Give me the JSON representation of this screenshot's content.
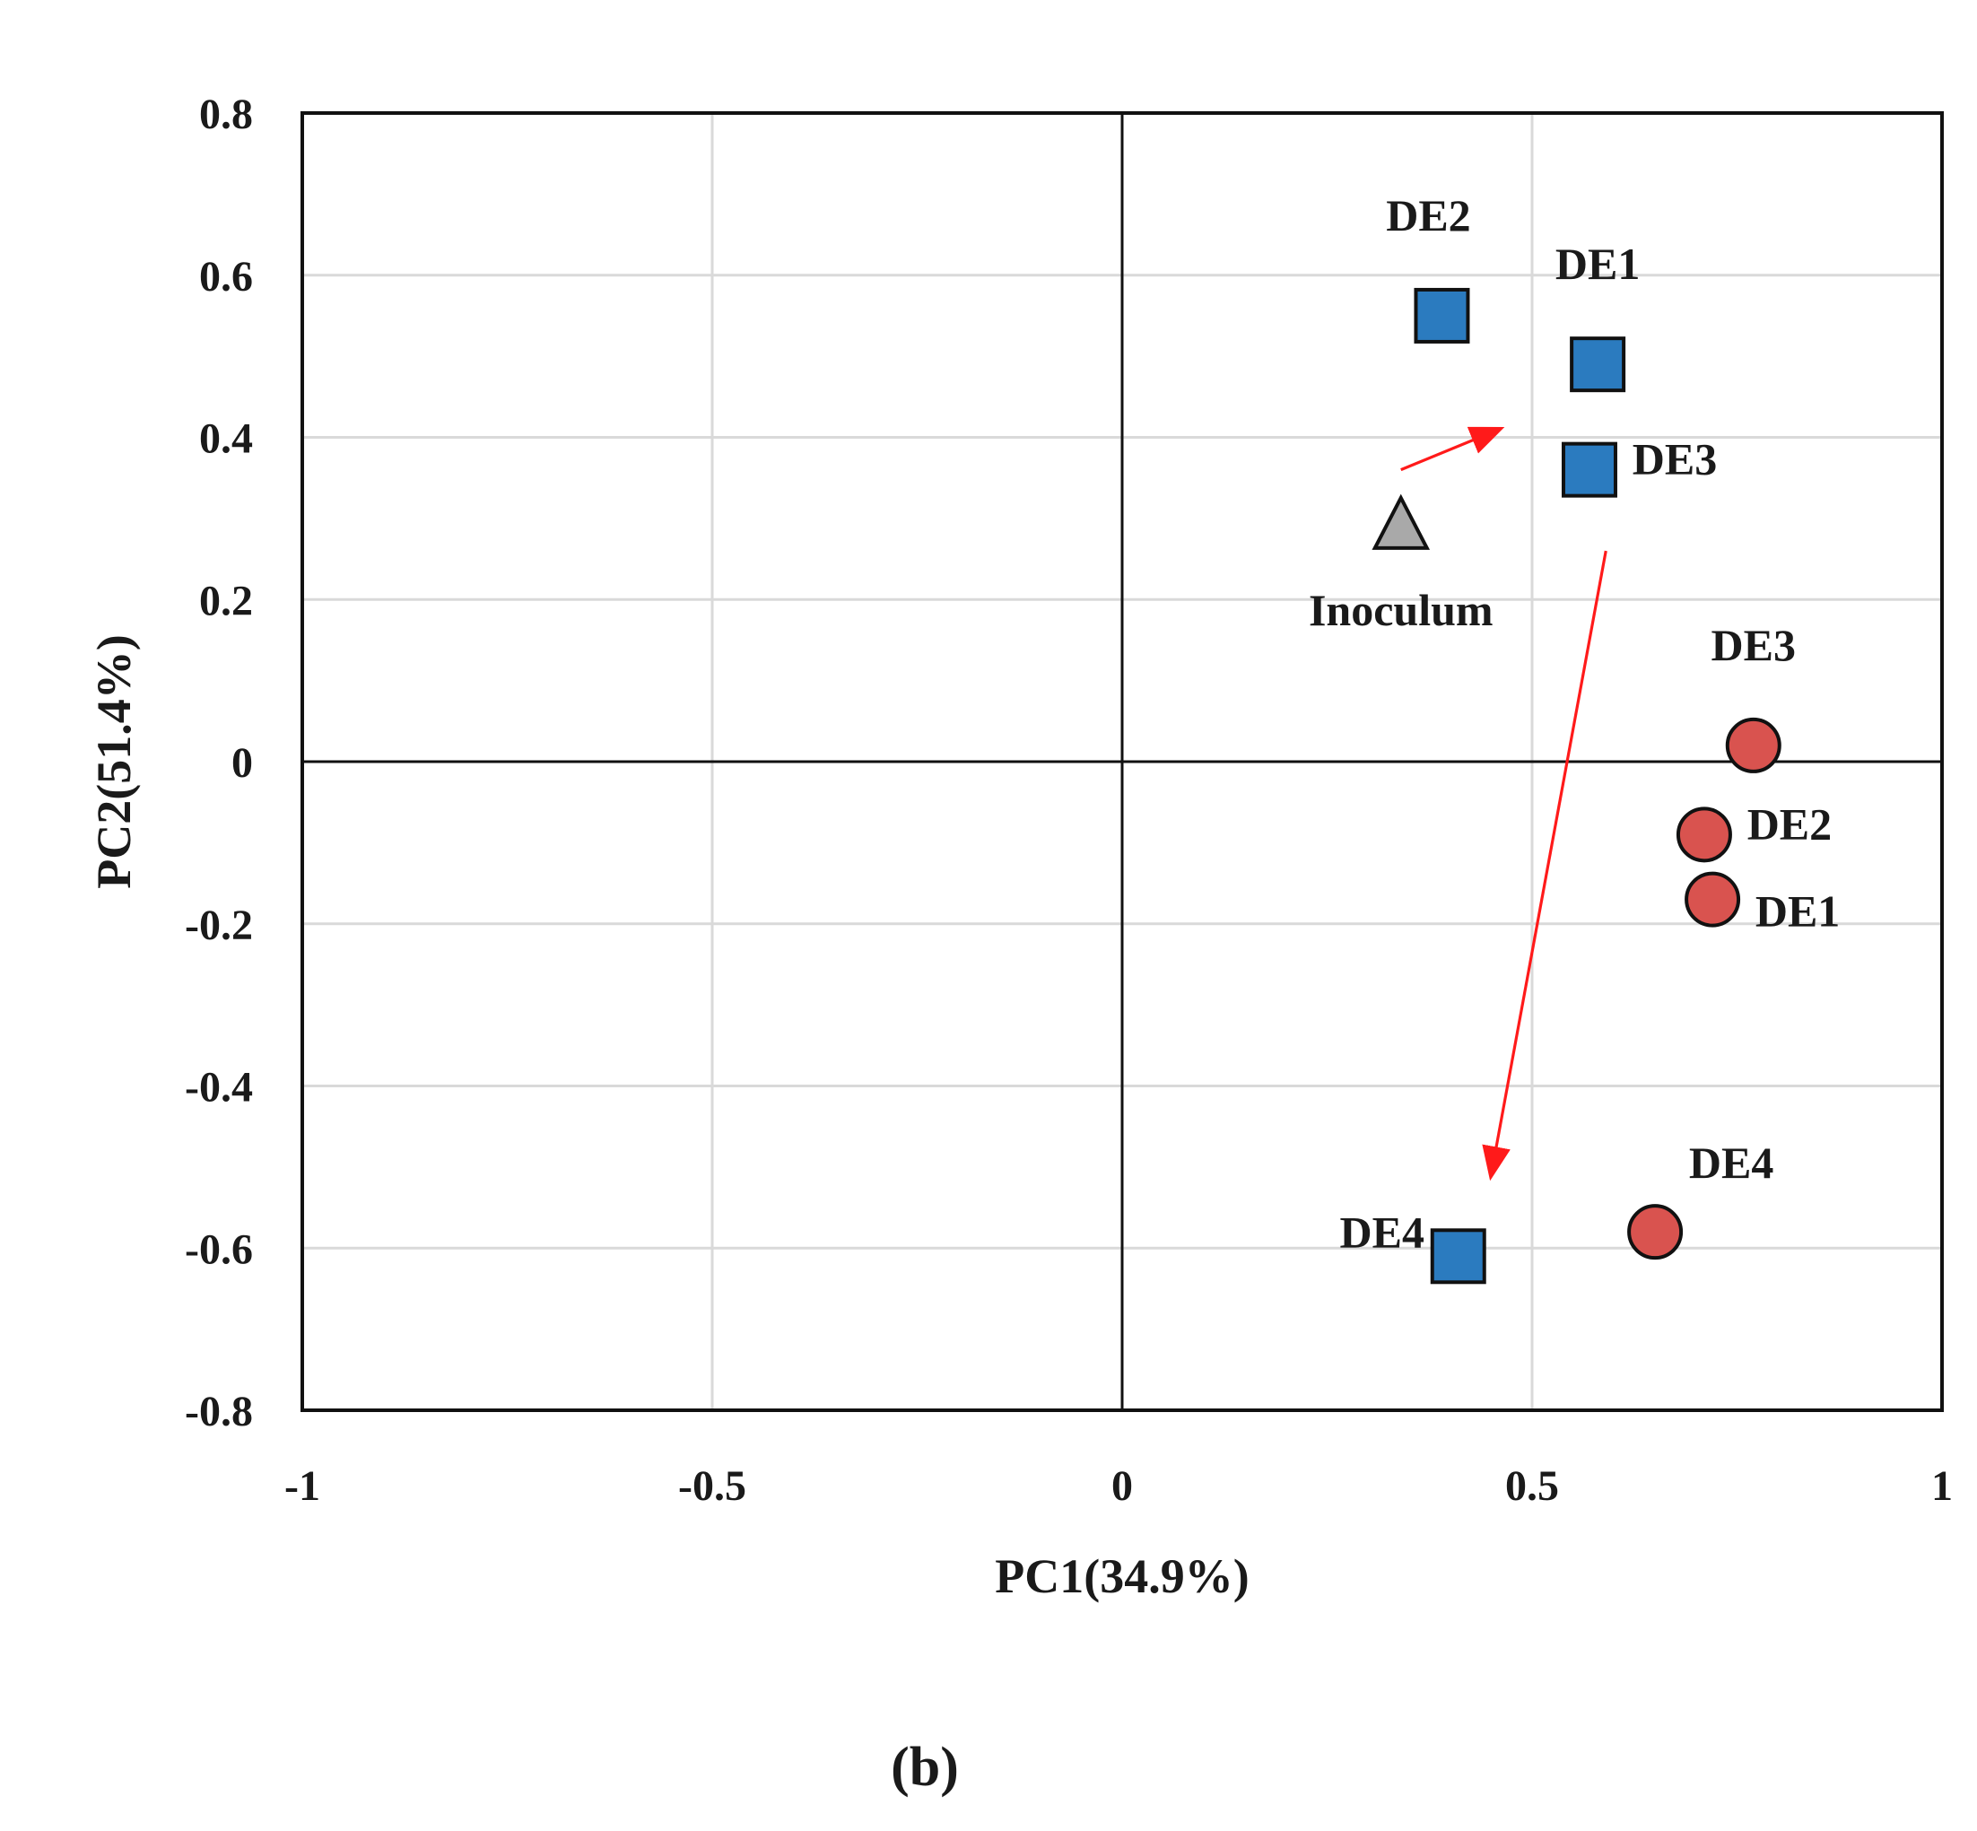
{
  "chart_data": {
    "type": "scatter",
    "title": "",
    "xlabel": "PC1(34.9%)",
    "ylabel": "PC2(51.4%)",
    "xlim": [
      -1,
      1
    ],
    "ylim": [
      -0.8,
      0.8
    ],
    "xticks": [
      -1,
      -0.5,
      0,
      0.5,
      1
    ],
    "xtick_labels": [
      "-1",
      "-0.5",
      "0",
      "0.5",
      "1"
    ],
    "yticks": [
      -0.8,
      -0.6,
      -0.4,
      -0.2,
      0,
      0.2,
      0.4,
      0.6,
      0.8
    ],
    "ytick_labels": [
      "-0.8",
      "-0.6",
      "-0.4",
      "-0.2",
      "0",
      "0.2",
      "0.4",
      "0.6",
      "0.8"
    ],
    "grid": true,
    "panel_label": "(b)",
    "series": [
      {
        "name": "squares",
        "marker": "square",
        "color": "#2b7bbf",
        "points": [
          {
            "label": "DE1",
            "x": 0.58,
            "y": 0.49,
            "label_pos": "above"
          },
          {
            "label": "DE2",
            "x": 0.39,
            "y": 0.55,
            "label_pos": "above-left"
          },
          {
            "label": "DE3",
            "x": 0.57,
            "y": 0.36,
            "label_pos": "right"
          },
          {
            "label": "DE4",
            "x": 0.41,
            "y": -0.61,
            "label_pos": "left"
          }
        ]
      },
      {
        "name": "circles",
        "marker": "circle",
        "color": "#d9534f",
        "points": [
          {
            "label": "DE1",
            "x": 0.72,
            "y": -0.17,
            "label_pos": "right-below"
          },
          {
            "label": "DE2",
            "x": 0.71,
            "y": -0.09,
            "label_pos": "right"
          },
          {
            "label": "DE3",
            "x": 0.77,
            "y": 0.02,
            "label_pos": "above"
          },
          {
            "label": "DE4",
            "x": 0.65,
            "y": -0.58,
            "label_pos": "above-right"
          }
        ]
      },
      {
        "name": "inoculum",
        "marker": "triangle",
        "color": "#a9a9a9",
        "points": [
          {
            "label": "Inoculum",
            "x": 0.34,
            "y": 0.29,
            "label_pos": "below"
          }
        ]
      }
    ],
    "arrows": [
      {
        "from": [
          0.34,
          0.36
        ],
        "to": [
          0.46,
          0.41
        ],
        "color": "#ff1a1a"
      },
      {
        "from": [
          0.59,
          0.26
        ],
        "to": [
          0.45,
          -0.51
        ],
        "color": "#ff1a1a"
      }
    ]
  }
}
